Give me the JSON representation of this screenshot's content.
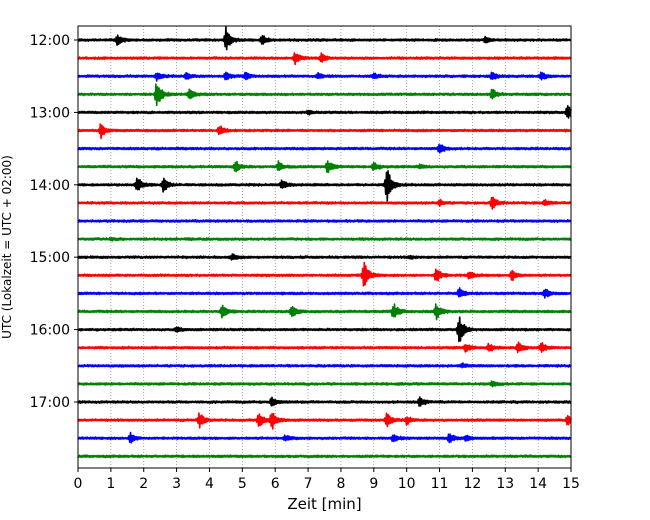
{
  "chart_data": {
    "type": "line",
    "title": "",
    "xlabel": "Zeit  [min]",
    "ylabel": "UTC (Lokalzeit = UTC + 02:00)",
    "xlim": [
      0,
      15
    ],
    "x_ticks": [
      "0",
      "1",
      "2",
      "3",
      "4",
      "5",
      "6",
      "7",
      "8",
      "9",
      "10",
      "11",
      "12",
      "13",
      "14",
      "15"
    ],
    "y_ticks": [
      "12:00",
      "13:00",
      "14:00",
      "15:00",
      "16:00",
      "17:00"
    ],
    "grid": "vertical dotted at each minute",
    "color_cycle": [
      "#000000",
      "#ff0000",
      "#0000ff",
      "#008000"
    ],
    "traces": [
      {
        "start": "12:00",
        "color": "#000000",
        "events": [
          [
            1.2,
            0.35
          ],
          [
            4.5,
            0.9
          ],
          [
            5.6,
            0.35
          ],
          [
            12.4,
            0.2
          ]
        ]
      },
      {
        "start": "12:15",
        "color": "#ff0000",
        "events": [
          [
            6.6,
            0.4
          ],
          [
            7.4,
            0.3
          ]
        ]
      },
      {
        "start": "12:30",
        "color": "#0000ff",
        "events": [
          [
            2.4,
            0.3
          ],
          [
            3.3,
            0.2
          ],
          [
            4.5,
            0.3
          ],
          [
            5.1,
            0.25
          ],
          [
            7.3,
            0.2
          ],
          [
            9.0,
            0.2
          ],
          [
            12.6,
            0.3
          ],
          [
            14.1,
            0.25
          ]
        ]
      },
      {
        "start": "12:45",
        "color": "#008000",
        "events": [
          [
            2.4,
            1.0
          ],
          [
            3.4,
            0.4
          ],
          [
            12.6,
            0.35
          ]
        ]
      },
      {
        "start": "13:00",
        "color": "#000000",
        "events": [
          [
            7.0,
            0.15
          ],
          [
            14.9,
            0.5
          ]
        ]
      },
      {
        "start": "13:15",
        "color": "#ff0000",
        "events": [
          [
            0.7,
            0.55
          ],
          [
            4.3,
            0.4
          ]
        ]
      },
      {
        "start": "13:30",
        "color": "#0000ff",
        "events": [
          [
            11.0,
            0.35
          ]
        ]
      },
      {
        "start": "13:45",
        "color": "#008000",
        "events": [
          [
            4.8,
            0.4
          ],
          [
            6.1,
            0.35
          ],
          [
            7.6,
            0.45
          ],
          [
            9.0,
            0.3
          ],
          [
            10.4,
            0.15
          ]
        ]
      },
      {
        "start": "14:00",
        "color": "#000000",
        "events": [
          [
            1.8,
            0.6
          ],
          [
            2.6,
            0.5
          ],
          [
            6.2,
            0.35
          ],
          [
            9.4,
            1.3
          ]
        ]
      },
      {
        "start": "14:15",
        "color": "#ff0000",
        "events": [
          [
            11.0,
            0.2
          ],
          [
            12.6,
            0.45
          ],
          [
            14.2,
            0.2
          ]
        ]
      },
      {
        "start": "14:30",
        "color": "#0000ff",
        "events": []
      },
      {
        "start": "14:45",
        "color": "#008000",
        "events": [
          [
            1.0,
            0.1
          ]
        ]
      },
      {
        "start": "15:00",
        "color": "#000000",
        "events": [
          [
            4.7,
            0.2
          ],
          [
            10.1,
            0.1
          ]
        ]
      },
      {
        "start": "15:15",
        "color": "#ff0000",
        "events": [
          [
            8.7,
            1.0
          ],
          [
            10.9,
            0.55
          ],
          [
            11.9,
            0.3
          ],
          [
            13.2,
            0.4
          ]
        ]
      },
      {
        "start": "15:30",
        "color": "#0000ff",
        "events": [
          [
            11.6,
            0.35
          ],
          [
            14.2,
            0.35
          ]
        ]
      },
      {
        "start": "15:45",
        "color": "#008000",
        "events": [
          [
            4.4,
            0.5
          ],
          [
            6.5,
            0.5
          ],
          [
            9.6,
            0.6
          ],
          [
            10.9,
            0.6
          ]
        ]
      },
      {
        "start": "16:00",
        "color": "#000000",
        "events": [
          [
            3.0,
            0.15
          ],
          [
            11.6,
            1.0
          ]
        ]
      },
      {
        "start": "16:15",
        "color": "#ff0000",
        "events": [
          [
            11.8,
            0.3
          ],
          [
            12.5,
            0.3
          ],
          [
            13.4,
            0.35
          ],
          [
            14.1,
            0.35
          ]
        ]
      },
      {
        "start": "16:30",
        "color": "#0000ff",
        "events": [
          [
            11.7,
            0.15
          ]
        ]
      },
      {
        "start": "16:45",
        "color": "#008000",
        "events": [
          [
            12.6,
            0.2
          ]
        ]
      },
      {
        "start": "17:00",
        "color": "#000000",
        "events": [
          [
            5.9,
            0.35
          ],
          [
            10.4,
            0.35
          ]
        ]
      },
      {
        "start": "17:15",
        "color": "#ff0000",
        "events": [
          [
            3.7,
            0.55
          ],
          [
            5.5,
            0.6
          ],
          [
            5.9,
            0.7
          ],
          [
            9.4,
            0.5
          ],
          [
            10.0,
            0.3
          ],
          [
            14.9,
            0.3
          ]
        ]
      },
      {
        "start": "17:30",
        "color": "#0000ff",
        "events": [
          [
            1.6,
            0.35
          ],
          [
            6.3,
            0.2
          ],
          [
            9.6,
            0.3
          ],
          [
            11.3,
            0.35
          ],
          [
            11.8,
            0.2
          ]
        ]
      },
      {
        "start": "17:45",
        "color": "#008000",
        "events": []
      }
    ]
  }
}
